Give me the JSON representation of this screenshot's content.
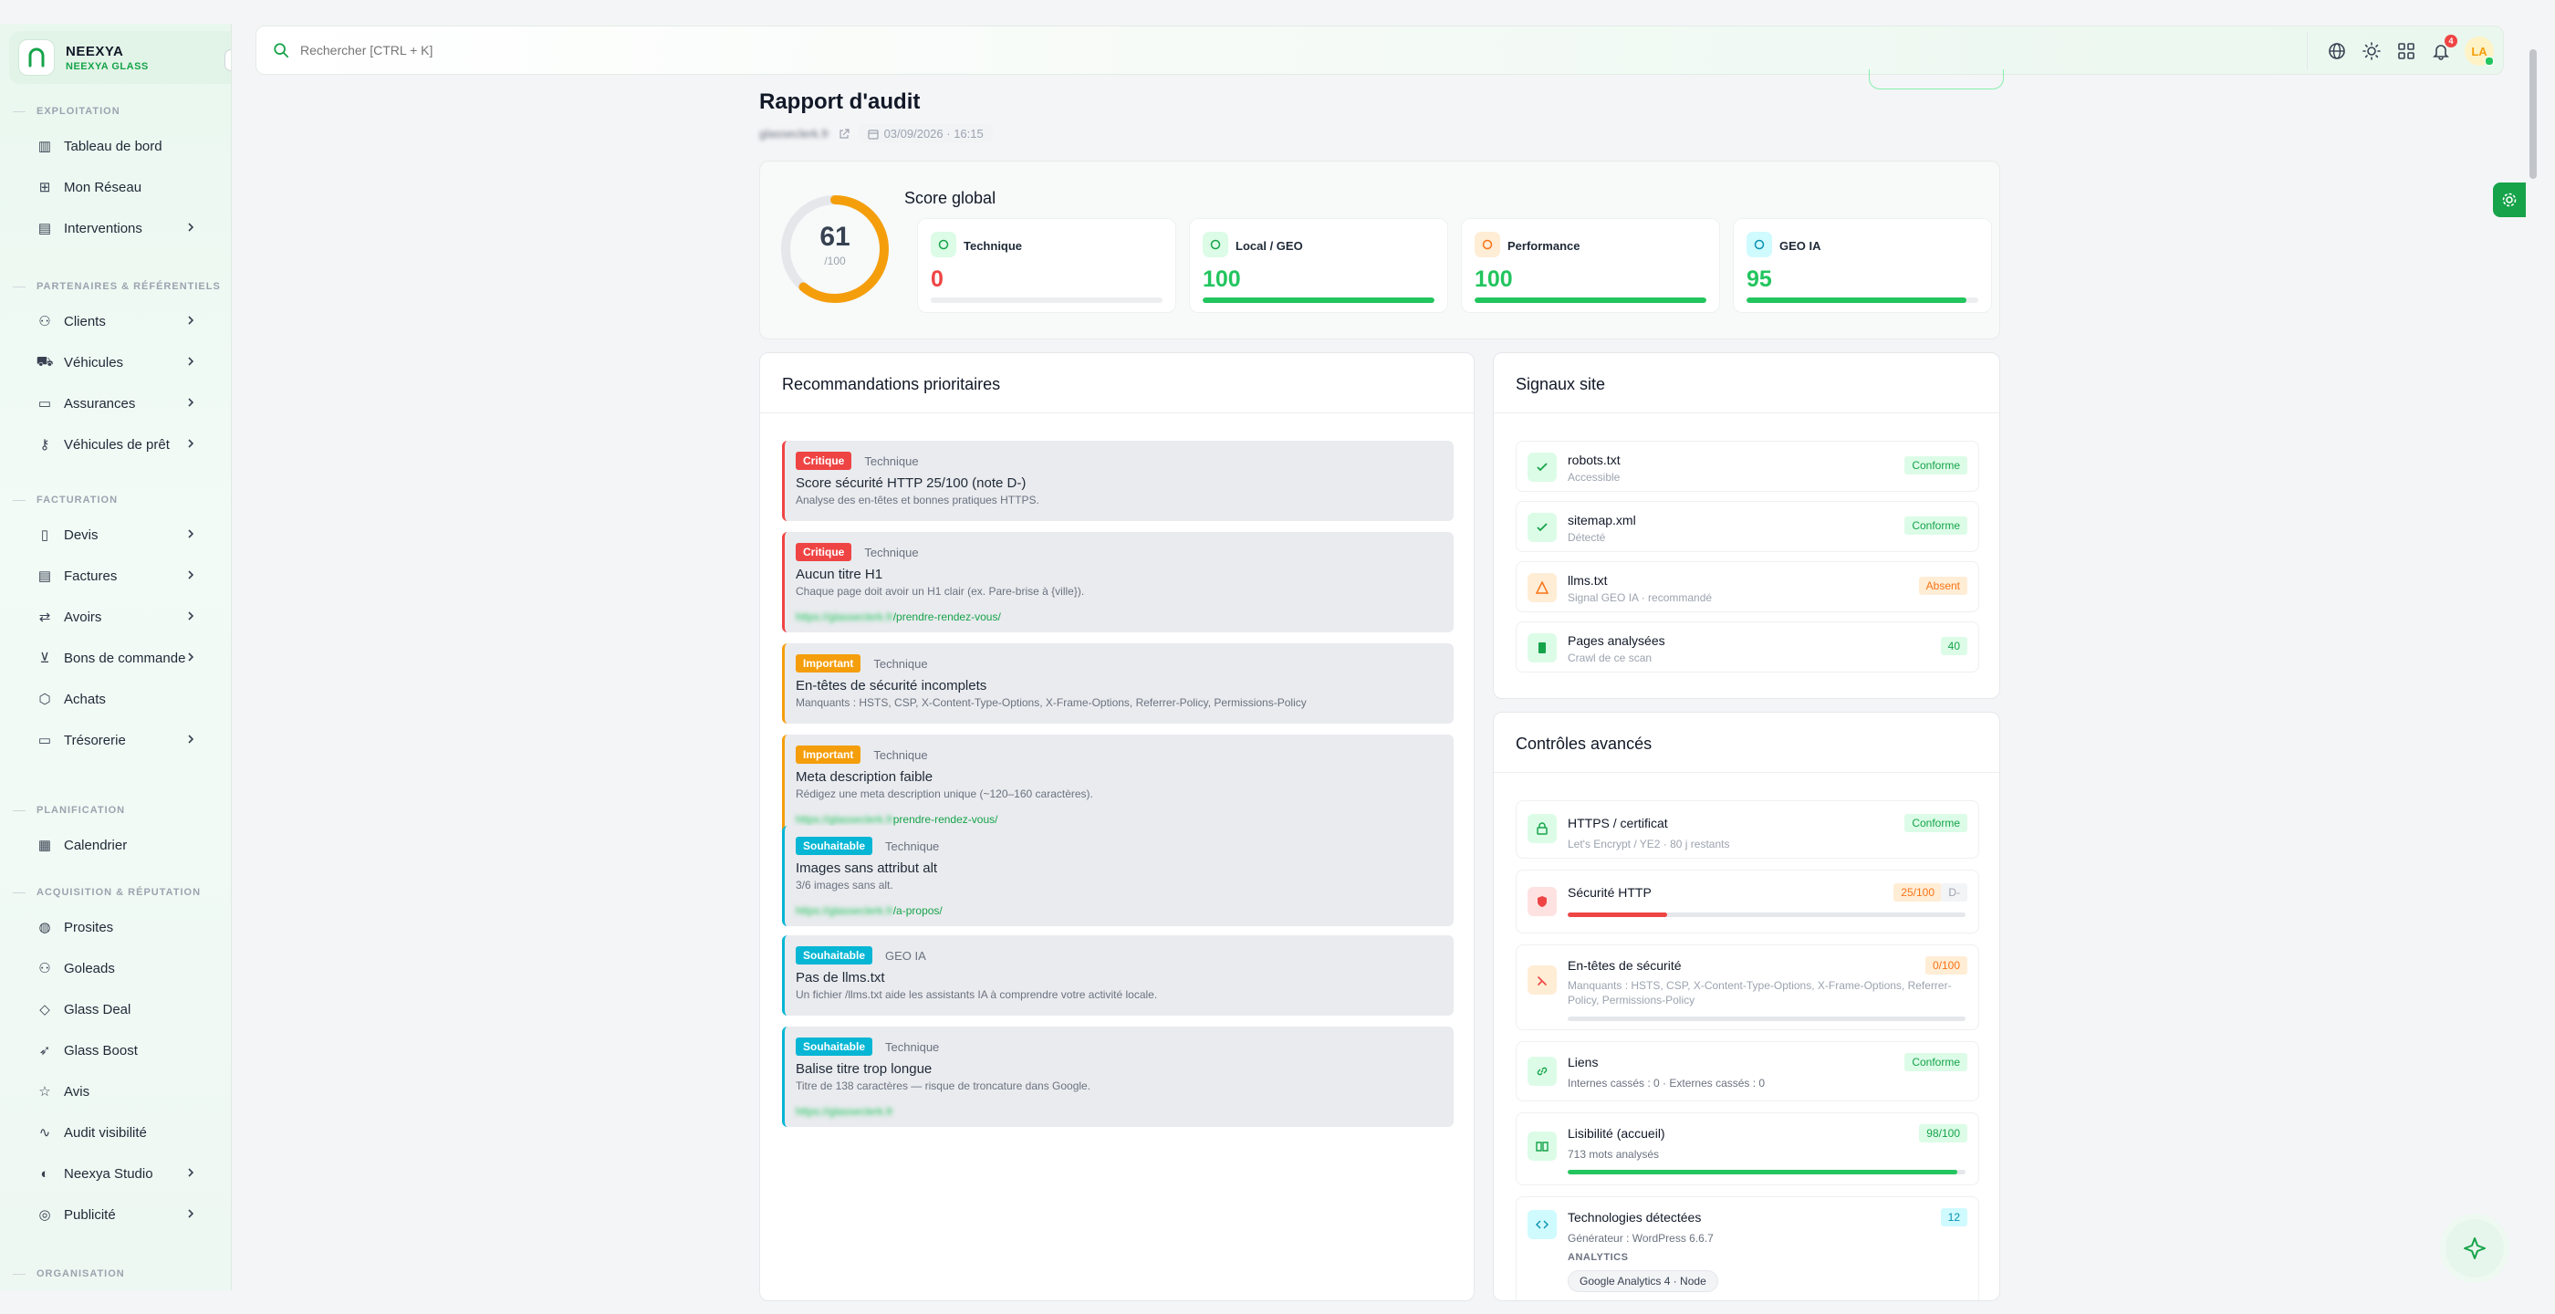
{
  "brand": {
    "name": "NEEXYA",
    "subtitle": "NEEXYA GLASS"
  },
  "sidebar": {
    "sections": [
      {
        "title": "EXPLOITATION",
        "items": [
          {
            "label": "Tableau de bord",
            "icon": "building-icon",
            "chevron": false
          },
          {
            "label": "Mon Réseau",
            "icon": "network-icon",
            "chevron": false
          },
          {
            "label": "Interventions",
            "icon": "clipboard-icon",
            "chevron": true
          }
        ]
      },
      {
        "title": "PARTENAIRES & RÉFÉRENTIELS",
        "items": [
          {
            "label": "Clients",
            "icon": "users-icon",
            "chevron": true
          },
          {
            "label": "Véhicules",
            "icon": "car-icon",
            "chevron": true
          },
          {
            "label": "Assurances",
            "icon": "briefcase-icon",
            "chevron": true
          },
          {
            "label": "Véhicules de prêt",
            "icon": "key-icon",
            "chevron": true
          }
        ]
      },
      {
        "title": "FACTURATION",
        "items": [
          {
            "label": "Devis",
            "icon": "file-icon",
            "chevron": true
          },
          {
            "label": "Factures",
            "icon": "invoice-icon",
            "chevron": true
          },
          {
            "label": "Avoirs",
            "icon": "swap-icon",
            "chevron": true
          },
          {
            "label": "Bons de commande",
            "icon": "cart-icon",
            "chevron": true
          },
          {
            "label": "Achats",
            "icon": "box-icon",
            "chevron": false
          },
          {
            "label": "Trésorerie",
            "icon": "wallet-icon",
            "chevron": true
          }
        ]
      },
      {
        "title": "PLANIFICATION",
        "items": [
          {
            "label": "Calendrier",
            "icon": "calendar-icon",
            "chevron": false
          }
        ]
      },
      {
        "title": "ACQUISITION & RÉPUTATION",
        "items": [
          {
            "label": "Prosites",
            "icon": "globe-icon",
            "chevron": false
          },
          {
            "label": "Goleads",
            "icon": "user-plus-icon",
            "chevron": false
          },
          {
            "label": "Glass Deal",
            "icon": "tag-icon",
            "chevron": false
          },
          {
            "label": "Glass Boost",
            "icon": "rocket-icon",
            "chevron": false
          },
          {
            "label": "Avis",
            "icon": "star-icon",
            "chevron": false
          },
          {
            "label": "Audit visibilité",
            "icon": "pulse-icon",
            "chevron": false
          },
          {
            "label": "Neexya Studio",
            "icon": "palette-icon",
            "chevron": true
          },
          {
            "label": "Publicité",
            "icon": "target-icon",
            "chevron": true
          }
        ]
      },
      {
        "title": "ORGANISATION",
        "items": []
      }
    ]
  },
  "topbar": {
    "search_placeholder": "Rechercher [CTRL + K]",
    "notif_count": "4",
    "avatar": "LA"
  },
  "page": {
    "title": "Rapport d'audit",
    "site": "glasseclerk.fr",
    "date": "03/09/2026 · 16:15"
  },
  "score": {
    "title": "Score global",
    "value": "61",
    "denominator": "/100",
    "fraction": 0.61,
    "subs": [
      {
        "label": "Technique",
        "value": "0",
        "fraction": 0,
        "color": "#ef4444",
        "icon_bg": "#dcfce7",
        "icon_color": "#16a34a",
        "icon": "code-icon"
      },
      {
        "label": "Local / GEO",
        "value": "100",
        "fraction": 1,
        "color": "#22c55e",
        "icon_bg": "#dcfce7",
        "icon_color": "#16a34a",
        "icon": "pin-icon"
      },
      {
        "label": "Performance",
        "value": "100",
        "fraction": 1,
        "color": "#22c55e",
        "icon_bg": "#ffedd5",
        "icon_color": "#f97316",
        "icon": "gauge-icon"
      },
      {
        "label": "GEO IA",
        "value": "95",
        "fraction": 0.95,
        "color": "#22c55e",
        "icon_bg": "#cffafe",
        "icon_color": "#0891b2",
        "icon": "bot-icon"
      }
    ]
  },
  "recommendations": {
    "title": "Recommandations prioritaires",
    "items": [
      {
        "level": "Critique",
        "color": "#ef4444",
        "category": "Technique",
        "title": "Score sécurité HTTP 25/100 (note D-)",
        "desc": "Analyse des en-têtes et bonnes pratiques HTTPS.",
        "url_blur": "",
        "url": ""
      },
      {
        "level": "Critique",
        "color": "#ef4444",
        "category": "Technique",
        "title": "Aucun titre H1",
        "desc": "Chaque page doit avoir un H1 clair (ex. Pare-brise à {ville}).",
        "url_blur": "https://glasseclerk.fr",
        "url": "/prendre-rendez-vous/"
      },
      {
        "level": "Important",
        "color": "#f59e0b",
        "category": "Technique",
        "title": "En-têtes de sécurité incomplets",
        "desc": "Manquants : HSTS, CSP, X-Content-Type-Options, X-Frame-Options, Referrer-Policy, Permissions-Policy",
        "url_blur": "",
        "url": ""
      },
      {
        "level": "Important",
        "color": "#f59e0b",
        "category": "Technique",
        "title": "Meta description faible",
        "desc": "Rédigez une meta description unique (~120–160 caractères).",
        "url_blur": "https://glasseclerk.fr",
        "url": "prendre-rendez-vous/"
      },
      {
        "level": "Souhaitable",
        "color": "#06b6d4",
        "category": "Technique",
        "title": "Images sans attribut alt",
        "desc": "3/6 images sans alt.",
        "url_blur": "https://glasseclerk.fr",
        "url": "/a-propos/"
      },
      {
        "level": "Souhaitable",
        "color": "#06b6d4",
        "category": "GEO IA",
        "title": "Pas de llms.txt",
        "desc": "Un fichier /llms.txt aide les assistants IA à comprendre votre activité locale.",
        "url_blur": "",
        "url": ""
      },
      {
        "level": "Souhaitable",
        "color": "#06b6d4",
        "category": "Technique",
        "title": "Balise titre trop longue",
        "desc": "Titre de 138 caractères — risque de troncature dans Google.",
        "url_blur": "https://glasseclerk.fr",
        "url": ""
      }
    ]
  },
  "signals": {
    "title": "Signaux site",
    "items": [
      {
        "name": "robots.txt",
        "sub": "Accessible",
        "status": "Conforme",
        "kind": "green",
        "icon": "check-icon"
      },
      {
        "name": "sitemap.xml",
        "sub": "Détecté",
        "status": "Conforme",
        "kind": "green",
        "icon": "check-icon"
      },
      {
        "name": "llms.txt",
        "sub": "Signal GEO IA · recommandé",
        "status": "Absent",
        "kind": "orange",
        "icon": "warning-icon"
      },
      {
        "name": "Pages analysées",
        "sub": "Crawl de ce scan",
        "status": "40",
        "kind": "green",
        "icon": "document-icon"
      }
    ]
  },
  "advanced": {
    "title": "Contrôles avancés",
    "https": {
      "name": "HTTPS / certificat",
      "sub": "Let's Encrypt / YE2 · 80 j restants",
      "status": "Conforme"
    },
    "security": {
      "name": "Sécurité HTTP",
      "score": "25/100",
      "grade": "D-",
      "fraction": 0.25
    },
    "headers": {
      "name": "En-têtes de sécurité",
      "score": "0/100",
      "sub": "Manquants : HSTS, CSP, X-Content-Type-Options, X-Frame-Options, Referrer-Policy, Permissions-Policy",
      "fraction": 0
    },
    "links": {
      "name": "Liens",
      "sub": "Internes cassés : 0 · Externes cassés : 0",
      "status": "Conforme"
    },
    "readability": {
      "name": "Lisibilité (accueil)",
      "score": "98/100",
      "sub": "713 mots analysés",
      "fraction": 0.98
    },
    "tech": {
      "name": "Technologies détectées",
      "count": "12",
      "sub": "Générateur : WordPress 6.6.7",
      "group": "ANALYTICS",
      "chip": "Google Analytics 4 · Node"
    }
  },
  "colors": {
    "accent": "#16a34a",
    "critical": "#ef4444",
    "important": "#f59e0b",
    "optional": "#06b6d4"
  }
}
